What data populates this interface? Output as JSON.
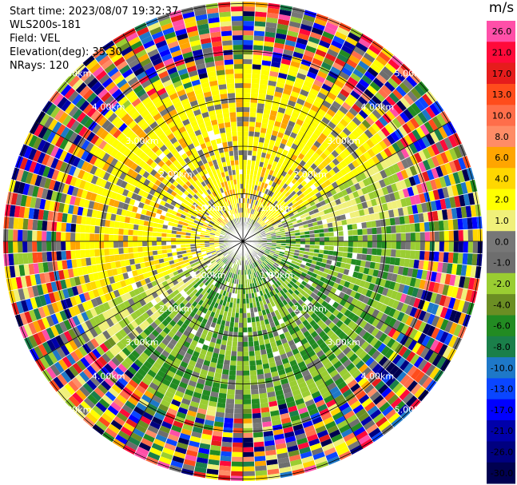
{
  "info": {
    "start_time": "Start time: 2023/08/07 19:32:37",
    "instrument": "WLS200s-181",
    "field": "Field: VEL",
    "elevation": "Elevation(deg): 35.30",
    "nrays": "NRays: 120"
  },
  "colorbar": {
    "unit": "m/s",
    "ticks": [
      "26.0",
      "21.0",
      "17.0",
      "13.0",
      "10.0",
      "8.0",
      "6.0",
      "4.0",
      "2.0",
      "1.0",
      "0.0",
      "-1.0",
      "-2.0",
      "-4.0",
      "-6.0",
      "-8.0",
      "-10.0",
      "-13.0",
      "-17.0",
      "-21.0",
      "-26.0",
      "-30.0"
    ],
    "colors": [
      "#ff4fa8",
      "#ff0a3a",
      "#e61c1c",
      "#ff4c1c",
      "#ff6e4a",
      "#ff8c66",
      "#ffa500",
      "#ffd700",
      "#ffff00",
      "#f0f07a",
      "#777777",
      "#6e6e6e",
      "#9acd32",
      "#6b8e23",
      "#228b22",
      "#1a7f4a",
      "#1e78c8",
      "#0a46ff",
      "#0000ff",
      "#0000aa",
      "#000080",
      "#000050"
    ]
  },
  "chart_data": {
    "type": "heatmap",
    "title": "",
    "field": "VEL",
    "projection": "PPI polar",
    "nrays": 120,
    "range_rings_km": [
      1.0,
      2.0,
      3.0,
      4.0,
      5.0
    ],
    "ring_labels": [
      "1.00km",
      "2.00km",
      "3.00km",
      "4.00km",
      "5.00km"
    ],
    "value_range": [
      -30.0,
      26.0
    ],
    "spoke_angles_deg": [
      0,
      30,
      60,
      90,
      120,
      150,
      180,
      210,
      240,
      270,
      300,
      330
    ]
  }
}
